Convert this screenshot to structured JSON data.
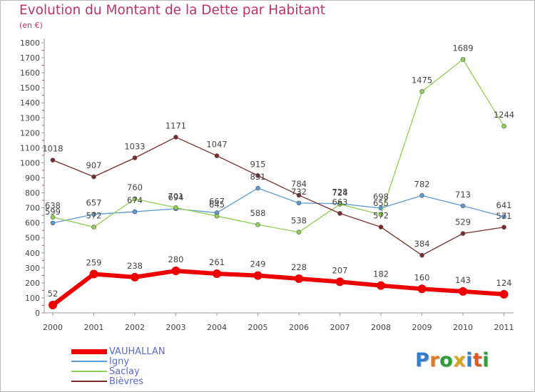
{
  "header": {
    "title": "Evolution du Montant de la Dette par Habitant",
    "unit": "(en €)"
  },
  "logo": {
    "letters": [
      {
        "ch": "P",
        "color": "#2e7fd0"
      },
      {
        "ch": "r",
        "color": "#e07a24"
      },
      {
        "ch": "o",
        "color": "#2e9d3a"
      },
      {
        "ch": "x",
        "color": "#d9a51e"
      },
      {
        "ch": "i",
        "color": "#2e7fd0"
      },
      {
        "ch": "t",
        "color": "#e05a24"
      },
      {
        "ch": "i",
        "color": "#2e9d3a"
      }
    ]
  },
  "chart_data": {
    "type": "line",
    "x": [
      "2000",
      "2001",
      "2002",
      "2003",
      "2004",
      "2005",
      "2006",
      "2007",
      "2008",
      "2009",
      "2010",
      "2011"
    ],
    "ylim": [
      0,
      1800
    ],
    "yticks": [
      0,
      100,
      200,
      300,
      400,
      500,
      600,
      700,
      800,
      900,
      1000,
      1100,
      1200,
      1300,
      1400,
      1500,
      1600,
      1700,
      1800
    ],
    "grid": false,
    "legend_position": "bottom-left",
    "series": [
      {
        "name": "VAUHALLAN",
        "color": "#ee0000",
        "width": 6,
        "marker": 6,
        "values": [
          52,
          259,
          238,
          280,
          261,
          249,
          228,
          207,
          182,
          160,
          143,
          124
        ]
      },
      {
        "name": "Igny",
        "color": "#5b9bd5",
        "width": 1.3,
        "marker": 3,
        "values": [
          599,
          657,
          674,
          694,
          667,
          831,
          732,
          728,
          698,
          782,
          713,
          641
        ]
      },
      {
        "name": "Saclay",
        "color": "#8fd14f",
        "width": 1.3,
        "marker": 3,
        "values": [
          638,
          572,
          760,
          701,
          645,
          588,
          538,
          724,
          655,
          1475,
          1689,
          1244
        ]
      },
      {
        "name": "Bièvres",
        "color": "#7b2b2b",
        "width": 1.3,
        "marker": 3,
        "values": [
          1018,
          907,
          1033,
          1171,
          1047,
          915,
          784,
          663,
          572,
          384,
          529,
          571
        ]
      }
    ]
  }
}
